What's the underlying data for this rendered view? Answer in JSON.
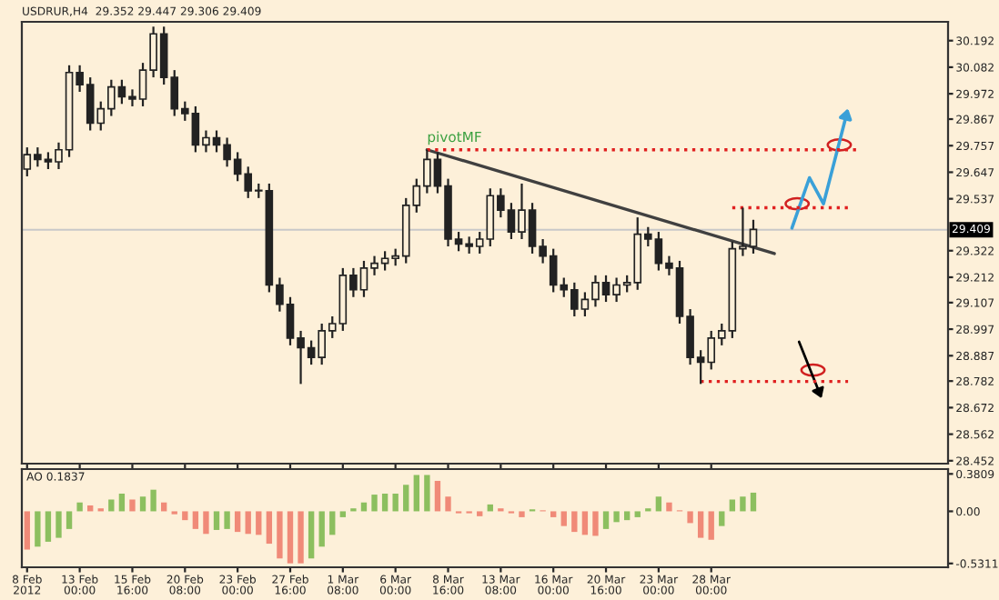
{
  "chart_data": [
    {
      "type": "candlestick",
      "title": "USDRUR,H4  29.352 29.447 29.306 29.409",
      "categories": [
        "8 Feb 2012",
        null,
        null,
        null,
        null,
        "13 Feb 00:00",
        null,
        null,
        null,
        null,
        "15 Feb 16:00",
        null,
        null,
        null,
        null,
        "20 Feb 08:00",
        null,
        null,
        null,
        null,
        "23 Feb 00:00",
        null,
        null,
        null,
        null,
        "27 Feb 16:00",
        null,
        null,
        null,
        null,
        "1 Mar 08:00",
        null,
        null,
        null,
        null,
        "6 Mar 00:00",
        null,
        null,
        null,
        null,
        "8 Mar 16:00",
        null,
        null,
        null,
        null,
        "13 Mar 08:00",
        null,
        null,
        null,
        null,
        "16 Mar 00:00",
        null,
        null,
        null,
        null,
        "20 Mar 16:00",
        null,
        null,
        null,
        null,
        "23 Mar 00:00",
        null,
        null,
        null,
        null,
        "28 Mar 00:00",
        null,
        null,
        null,
        null,
        null,
        null,
        null,
        null,
        null,
        null,
        null,
        null,
        null,
        null,
        null,
        null,
        null,
        null,
        null,
        null,
        null,
        null
      ],
      "series": [
        {
          "type": "candlestick",
          "color": "#222222",
          "ohlc": [
            [
              29.66,
              29.75,
              29.63,
              29.72
            ],
            [
              29.72,
              29.75,
              29.67,
              29.7
            ],
            [
              29.7,
              29.73,
              29.66,
              29.69
            ],
            [
              29.69,
              29.77,
              29.66,
              29.74
            ],
            [
              29.74,
              30.09,
              29.71,
              30.06
            ],
            [
              30.06,
              30.09,
              29.98,
              30.01
            ],
            [
              30.01,
              30.04,
              29.82,
              29.85
            ],
            [
              29.85,
              29.94,
              29.82,
              29.91
            ],
            [
              29.91,
              30.03,
              29.88,
              30.0
            ],
            [
              30.0,
              30.03,
              29.93,
              29.96
            ],
            [
              29.96,
              29.99,
              29.92,
              29.95
            ],
            [
              29.95,
              30.1,
              29.92,
              30.07
            ],
            [
              30.07,
              30.25,
              30.04,
              30.22
            ],
            [
              30.22,
              30.25,
              30.01,
              30.04
            ],
            [
              30.04,
              30.07,
              29.88,
              29.91
            ],
            [
              29.91,
              29.94,
              29.86,
              29.89
            ],
            [
              29.89,
              29.92,
              29.73,
              29.76
            ],
            [
              29.76,
              29.82,
              29.73,
              29.79
            ],
            [
              29.79,
              29.82,
              29.73,
              29.76
            ],
            [
              29.76,
              29.79,
              29.67,
              29.7
            ],
            [
              29.7,
              29.73,
              29.61,
              29.64
            ],
            [
              29.64,
              29.67,
              29.54,
              29.57
            ],
            [
              29.57,
              29.6,
              29.54,
              29.57
            ],
            [
              29.57,
              29.6,
              29.15,
              29.18
            ],
            [
              29.18,
              29.21,
              29.07,
              29.1
            ],
            [
              29.1,
              29.13,
              28.93,
              28.96
            ],
            [
              28.96,
              28.99,
              28.77,
              28.92
            ],
            [
              28.92,
              28.95,
              28.85,
              28.88
            ],
            [
              28.88,
              29.02,
              28.85,
              28.99
            ],
            [
              28.99,
              29.05,
              28.96,
              29.02
            ],
            [
              29.02,
              29.25,
              28.99,
              29.22
            ],
            [
              29.22,
              29.25,
              29.13,
              29.16
            ],
            [
              29.16,
              29.28,
              29.13,
              29.25
            ],
            [
              29.25,
              29.3,
              29.22,
              29.27
            ],
            [
              29.27,
              29.32,
              29.24,
              29.29
            ],
            [
              29.29,
              29.33,
              29.26,
              29.3
            ],
            [
              29.3,
              29.54,
              29.27,
              29.51
            ],
            [
              29.51,
              29.62,
              29.48,
              29.59
            ],
            [
              29.59,
              29.74,
              29.56,
              29.7
            ],
            [
              29.7,
              29.73,
              29.56,
              29.59
            ],
            [
              29.59,
              29.62,
              29.34,
              29.37
            ],
            [
              29.37,
              29.4,
              29.32,
              29.35
            ],
            [
              29.35,
              29.38,
              29.31,
              29.34
            ],
            [
              29.34,
              29.4,
              29.31,
              29.37
            ],
            [
              29.37,
              29.58,
              29.34,
              29.55
            ],
            [
              29.55,
              29.58,
              29.46,
              29.49
            ],
            [
              29.49,
              29.52,
              29.37,
              29.4
            ],
            [
              29.4,
              29.6,
              29.37,
              29.49
            ],
            [
              29.49,
              29.52,
              29.31,
              29.34
            ],
            [
              29.34,
              29.37,
              29.27,
              29.3
            ],
            [
              29.3,
              29.33,
              29.15,
              29.18
            ],
            [
              29.18,
              29.21,
              29.13,
              29.16
            ],
            [
              29.16,
              29.19,
              29.05,
              29.08
            ],
            [
              29.08,
              29.15,
              29.05,
              29.12
            ],
            [
              29.12,
              29.22,
              29.09,
              29.19
            ],
            [
              29.19,
              29.22,
              29.11,
              29.14
            ],
            [
              29.14,
              29.21,
              29.11,
              29.18
            ],
            [
              29.18,
              29.22,
              29.15,
              29.19
            ],
            [
              29.19,
              29.46,
              29.16,
              29.39
            ],
            [
              29.39,
              29.42,
              29.34,
              29.37
            ],
            [
              29.37,
              29.4,
              29.24,
              29.27
            ],
            [
              29.27,
              29.3,
              29.22,
              29.25
            ],
            [
              29.25,
              29.28,
              29.02,
              29.05
            ],
            [
              29.05,
              29.08,
              28.85,
              28.88
            ],
            [
              28.88,
              28.91,
              28.77,
              28.86
            ],
            [
              28.86,
              28.99,
              28.83,
              28.96
            ],
            [
              28.96,
              29.02,
              28.93,
              28.99
            ],
            [
              28.99,
              29.36,
              28.96,
              29.33
            ],
            [
              29.33,
              29.5,
              29.3,
              29.34
            ],
            [
              29.34,
              29.45,
              29.31,
              29.41
            ],
            null,
            null,
            null,
            null,
            null,
            null,
            null,
            null,
            null,
            null,
            null,
            null,
            null,
            null,
            null,
            null,
            null,
            null
          ]
        },
        {
          "type": "line",
          "color": "#404040",
          "line_style": "solid",
          "values": [
            null,
            null,
            null,
            null,
            null,
            null,
            null,
            null,
            null,
            null,
            null,
            null,
            null,
            null,
            null,
            null,
            null,
            null,
            null,
            null,
            null,
            null,
            null,
            null,
            null,
            null,
            null,
            null,
            null,
            null,
            null,
            null,
            null,
            null,
            null,
            null,
            null,
            null,
            29.74,
            null,
            null,
            null,
            null,
            null,
            null,
            null,
            null,
            null,
            null,
            null,
            null,
            null,
            null,
            null,
            null,
            null,
            null,
            null,
            null,
            null,
            null,
            null,
            null,
            null,
            null,
            null,
            null,
            null,
            null,
            null,
            null,
            29.31,
            null,
            null,
            null,
            null,
            null,
            null,
            null,
            null,
            null,
            null,
            null,
            null,
            null,
            null,
            null,
            null
          ]
        },
        {
          "type": "line",
          "color": "#e02020",
          "line_style": "dotted",
          "values": [
            null,
            null,
            null,
            null,
            null,
            null,
            null,
            null,
            null,
            null,
            null,
            null,
            null,
            null,
            null,
            null,
            null,
            null,
            null,
            null,
            null,
            null,
            null,
            null,
            null,
            null,
            null,
            null,
            null,
            null,
            null,
            null,
            null,
            null,
            null,
            null,
            null,
            null,
            29.74,
            null,
            null,
            null,
            null,
            null,
            null,
            null,
            null,
            null,
            null,
            null,
            null,
            null,
            null,
            null,
            null,
            null,
            null,
            null,
            null,
            null,
            null,
            null,
            null,
            null,
            null,
            null,
            null,
            null,
            null,
            null,
            null,
            null,
            null,
            null,
            null,
            null,
            null,
            null,
            null,
            29.74,
            null,
            null,
            null,
            null,
            null,
            null,
            null,
            null
          ]
        },
        {
          "type": "line",
          "color": "#e02020",
          "line_style": "dotted",
          "values": [
            null,
            null,
            null,
            null,
            null,
            null,
            null,
            null,
            null,
            null,
            null,
            null,
            null,
            null,
            null,
            null,
            null,
            null,
            null,
            null,
            null,
            null,
            null,
            null,
            null,
            null,
            null,
            null,
            null,
            null,
            null,
            null,
            null,
            null,
            null,
            null,
            null,
            null,
            null,
            null,
            null,
            null,
            null,
            null,
            null,
            null,
            null,
            null,
            null,
            null,
            null,
            null,
            null,
            null,
            null,
            null,
            null,
            null,
            null,
            null,
            null,
            null,
            null,
            null,
            null,
            null,
            null,
            29.5,
            null,
            null,
            null,
            null,
            null,
            null,
            null,
            null,
            null,
            null,
            29.5,
            null,
            null,
            null,
            null,
            null,
            null,
            null,
            null,
            null
          ]
        },
        {
          "type": "line",
          "color": "#e02020",
          "line_style": "dotted",
          "values": [
            null,
            null,
            null,
            null,
            null,
            null,
            null,
            null,
            null,
            null,
            null,
            null,
            null,
            null,
            null,
            null,
            null,
            null,
            null,
            null,
            null,
            null,
            null,
            null,
            null,
            null,
            null,
            null,
            null,
            null,
            null,
            null,
            null,
            null,
            null,
            null,
            null,
            null,
            null,
            null,
            null,
            null,
            null,
            null,
            null,
            null,
            null,
            null,
            null,
            null,
            null,
            null,
            null,
            null,
            null,
            null,
            null,
            null,
            null,
            null,
            null,
            null,
            null,
            null,
            28.78,
            null,
            null,
            null,
            null,
            null,
            null,
            null,
            null,
            null,
            null,
            null,
            null,
            null,
            28.78,
            null,
            null,
            null,
            null,
            null,
            null,
            null,
            null,
            null
          ]
        }
      ],
      "annotations": [
        "pivotMF"
      ],
      "ref_lines": [
        {
          "axis": "y",
          "value": 29.409,
          "label": "29.409",
          "color": "#c8c8c8"
        }
      ],
      "ylim": [
        28.44,
        30.27
      ],
      "yticks": [
        30.192,
        30.082,
        29.972,
        29.867,
        29.757,
        29.647,
        29.537,
        29.322,
        29.212,
        29.107,
        28.997,
        28.887,
        28.782,
        28.672,
        28.562,
        28.452
      ],
      "tick_labels": "y",
      "grid": false,
      "legend": false
    },
    {
      "type": "bar",
      "title": "AO 0.1837",
      "values": [
        -0.39,
        -0.36,
        -0.31,
        -0.27,
        -0.18,
        0.09,
        0.06,
        0.03,
        0.12,
        0.18,
        0.12,
        0.15,
        0.22,
        0.09,
        -0.03,
        -0.09,
        -0.18,
        -0.23,
        -0.19,
        -0.18,
        -0.21,
        -0.23,
        -0.24,
        -0.33,
        -0.48,
        -0.53,
        -0.53,
        -0.48,
        -0.36,
        -0.24,
        -0.06,
        0.03,
        0.09,
        0.17,
        0.18,
        0.18,
        0.27,
        0.37,
        0.37,
        0.31,
        0.15,
        -0.02,
        -0.02,
        -0.05,
        0.07,
        0.03,
        -0.02,
        -0.06,
        0.02,
        0.01,
        -0.06,
        -0.15,
        -0.21,
        -0.24,
        -0.25,
        -0.18,
        -0.11,
        -0.09,
        -0.06,
        0.03,
        0.15,
        0.09,
        0.01,
        -0.12,
        -0.27,
        -0.29,
        -0.15,
        0.12,
        0.15,
        0.19,
        null,
        null,
        null,
        null,
        null,
        null,
        null,
        null,
        null,
        null,
        null,
        null,
        null,
        null,
        null,
        null,
        null,
        null
      ],
      "colors": [
        "#f08a78",
        "#8cbf5f",
        "#8cbf5f",
        "#8cbf5f",
        "#8cbf5f",
        "#8cbf5f",
        "#f08a78",
        "#f08a78",
        "#8cbf5f",
        "#8cbf5f",
        "#f08a78",
        "#8cbf5f",
        "#8cbf5f",
        "#f08a78",
        "#f08a78",
        "#f08a78",
        "#f08a78",
        "#f08a78",
        "#8cbf5f",
        "#8cbf5f",
        "#f08a78",
        "#f08a78",
        "#f08a78",
        "#f08a78",
        "#f08a78",
        "#f08a78",
        "#f08a78",
        "#8cbf5f",
        "#8cbf5f",
        "#8cbf5f",
        "#8cbf5f",
        "#8cbf5f",
        "#8cbf5f",
        "#8cbf5f",
        "#8cbf5f",
        "#8cbf5f",
        "#8cbf5f",
        "#8cbf5f",
        "#8cbf5f",
        "#f08a78",
        "#f08a78",
        "#f08a78",
        "#f08a78",
        "#f08a78",
        "#8cbf5f",
        "#f08a78",
        "#f08a78",
        "#f08a78",
        "#8cbf5f",
        "#f08a78",
        "#f08a78",
        "#f08a78",
        "#f08a78",
        "#f08a78",
        "#f08a78",
        "#8cbf5f",
        "#8cbf5f",
        "#8cbf5f",
        "#8cbf5f",
        "#8cbf5f",
        "#8cbf5f",
        "#f08a78",
        "#f08a78",
        "#f08a78",
        "#f08a78",
        "#f08a78",
        "#8cbf5f",
        "#8cbf5f",
        "#8cbf5f",
        "#8cbf5f",
        null,
        null,
        null,
        null,
        null,
        null,
        null,
        null,
        null,
        null,
        null,
        null,
        null,
        null,
        null,
        null,
        null,
        null
      ],
      "ylim": [
        -0.57,
        0.43
      ],
      "yticks": [
        0.3809,
        {
          "value": 0,
          "label": "0.00"
        },
        -0.5311
      ],
      "grid": false,
      "legend": false
    }
  ]
}
